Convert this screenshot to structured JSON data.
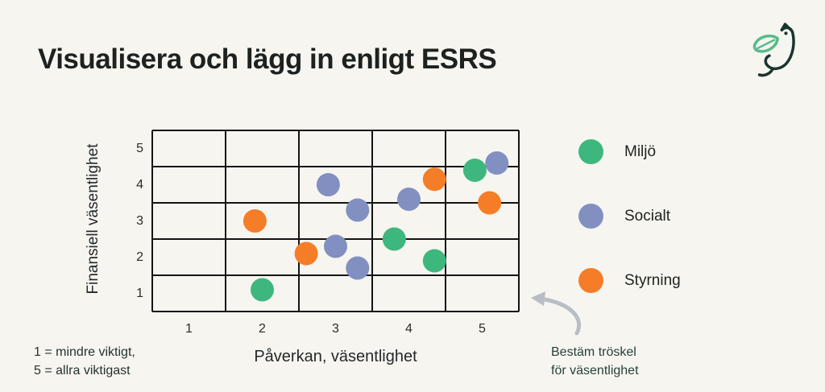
{
  "page": {
    "background": "#f7f5ef"
  },
  "header": {
    "title": "Visualisera och lägg in enligt ESRS"
  },
  "logo": {
    "name": "bird-leaf-logo",
    "bird_color": "#17362f",
    "leaf_color": "#56bb8b"
  },
  "chart_data": {
    "type": "scatter",
    "title": "Visualisera och lägg in enligt ESRS",
    "xlabel": "Påverkan, väsentlighet",
    "ylabel": "Finansiell väsentlighet",
    "x_ticks": [
      "1",
      "2",
      "3",
      "4",
      "5"
    ],
    "y_ticks_top_to_bottom": [
      "5",
      "4",
      "3",
      "2",
      "1"
    ],
    "xlim": [
      0.5,
      5.5
    ],
    "ylim": [
      0.5,
      5.5
    ],
    "grid": true,
    "grid_color": "#141414",
    "legend_position": "right",
    "series": [
      {
        "name": "Miljö",
        "color": "#3eb77e",
        "points": [
          [
            2.0,
            1.1
          ],
          [
            3.8,
            2.5
          ],
          [
            4.35,
            1.9
          ],
          [
            4.9,
            4.4
          ]
        ]
      },
      {
        "name": "Socialt",
        "color": "#8290c1",
        "points": [
          [
            2.9,
            4.0
          ],
          [
            3.0,
            2.3
          ],
          [
            3.3,
            1.7
          ],
          [
            3.3,
            3.3
          ],
          [
            4.0,
            3.6
          ],
          [
            5.2,
            4.6
          ]
        ]
      },
      {
        "name": "Styrning",
        "color": "#f57d28",
        "points": [
          [
            1.9,
            3.0
          ],
          [
            2.6,
            2.1
          ],
          [
            4.35,
            4.15
          ],
          [
            5.1,
            3.5
          ]
        ]
      }
    ]
  },
  "notes": {
    "scale_line1": "1 = mindre viktigt,",
    "scale_line2": "5 = allra viktigast",
    "threshold_line1": "Bestäm tröskel",
    "threshold_line2": "för väsentlighet",
    "arrow_color": "#b9bdc6"
  }
}
